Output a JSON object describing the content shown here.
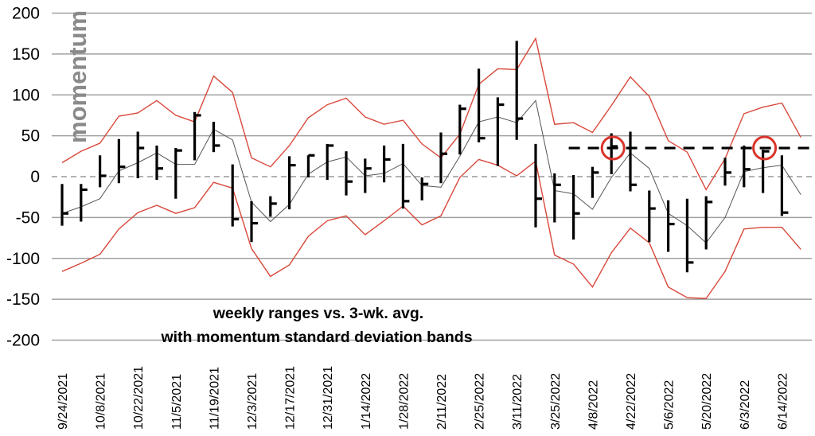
{
  "chart_data": {
    "type": "line",
    "title": [
      "weekly ranges vs. 3-wk. avg.",
      "with momentum standard deviation bands"
    ],
    "ylabel": "momentum",
    "xlabel": "",
    "ylim": [
      -200,
      200
    ],
    "yticks": [
      200,
      150,
      100,
      50,
      0,
      -50,
      -100,
      -150,
      -200
    ],
    "grid": true,
    "xtick_labels": [
      "9/24/2021",
      "10/8/2021",
      "10/22/2021",
      "11/5/2021",
      "11/19/2021",
      "12/3/2021",
      "12/17/2021",
      "12/31/2021",
      "1/14/2022",
      "1/28/2022",
      "2/11/2022",
      "2/25/2022",
      "3/11/2022",
      "3/25/2022",
      "4/8/2022",
      "4/22/2022",
      "5/6/2022",
      "5/20/2022",
      "6/3/2022",
      "6/14/2022"
    ],
    "weekly_ranges": {
      "high": [
        -9,
        -9,
        26,
        46,
        55,
        38,
        35,
        79,
        67,
        15,
        -30,
        -24,
        25,
        26,
        40,
        31,
        22,
        38,
        40,
        -1,
        54,
        88,
        132,
        97,
        166,
        40,
        4,
        2,
        12,
        53,
        55,
        -17,
        -29,
        -27,
        -24,
        23,
        38,
        33,
        26
      ],
      "low": [
        -60,
        -55,
        -13,
        -8,
        -2,
        -4,
        -27,
        20,
        30,
        -61,
        -80,
        -49,
        -40,
        -1,
        -4,
        -23,
        -20,
        -7,
        -39,
        -29,
        -8,
        27,
        42,
        13,
        45,
        -62,
        -56,
        -77,
        -26,
        3,
        -18,
        -80,
        -92,
        -117,
        -89,
        -11,
        -13,
        -20,
        -48
      ],
      "close": [
        -45,
        -16,
        1,
        12,
        35,
        10,
        32,
        75,
        38,
        -52,
        -57,
        -33,
        14,
        26,
        38,
        -6,
        10,
        21,
        -30,
        -9,
        28,
        83,
        47,
        88,
        71,
        -27,
        -10,
        -45,
        5,
        37,
        -10,
        -39,
        -58,
        -105,
        -31,
        5,
        9,
        31,
        -44
      ]
    },
    "series": [
      {
        "name": "3-wk. avg.",
        "color": "#555555",
        "values": [
          -45,
          -37,
          -27,
          7,
          17,
          29,
          15,
          15,
          58,
          45,
          -31,
          -55,
          -34,
          3,
          18,
          24,
          1,
          4,
          16,
          -11,
          -13,
          25,
          67,
          73,
          66,
          93,
          -17,
          -21,
          -40,
          -1,
          29,
          10,
          -45,
          -60,
          -81,
          -50,
          6,
          11,
          14,
          -22
        ]
      },
      {
        "name": "upper band",
        "color": "#d9483b",
        "values": [
          17,
          31,
          41,
          74,
          78,
          93,
          75,
          67,
          123,
          103,
          23,
          12,
          38,
          72,
          88,
          96,
          73,
          64,
          69,
          40,
          23,
          52,
          113,
          132,
          131,
          169,
          64,
          66,
          54,
          87,
          122,
          98,
          44,
          30,
          -16,
          22,
          77,
          85,
          90,
          48
        ]
      },
      {
        "name": "lower band",
        "color": "#d9483b",
        "values": [
          -116,
          -106,
          -95,
          -64,
          -44,
          -35,
          -45,
          -38,
          -7,
          -14,
          -88,
          -122,
          -108,
          -73,
          -54,
          -48,
          -71,
          -54,
          -36,
          -59,
          -48,
          -1,
          21,
          14,
          1,
          19,
          -96,
          -107,
          -135,
          -93,
          -63,
          -81,
          -135,
          -148,
          -149,
          -116,
          -64,
          -62,
          -62,
          -89
        ]
      }
    ],
    "annotations": {
      "resistance_level": 35,
      "resistance_start_index": 27,
      "circled_indices": [
        29,
        37
      ]
    }
  }
}
